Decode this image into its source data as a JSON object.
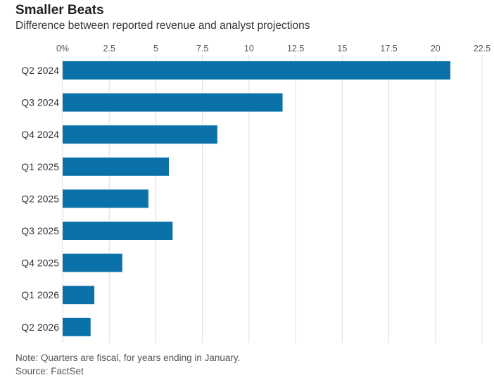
{
  "header": {
    "title": "Smaller Beats",
    "subtitle": "Difference between reported revenue and analyst projections"
  },
  "footer": {
    "note": "Note: Quarters are fiscal, for years ending in January.",
    "source": "Source: FactSet"
  },
  "chart_data": {
    "type": "bar",
    "orientation": "horizontal",
    "title": "Smaller Beats",
    "subtitle": "Difference between reported revenue and analyst projections",
    "categories": [
      "Q2 2024",
      "Q3 2024",
      "Q4 2024",
      "Q1 2025",
      "Q2 2025",
      "Q3 2025",
      "Q4 2025",
      "Q1 2026",
      "Q2 2026"
    ],
    "values": [
      20.8,
      11.8,
      8.3,
      5.7,
      4.6,
      5.9,
      3.2,
      1.7,
      1.5
    ],
    "xlim": [
      0,
      22.5
    ],
    "xticks": [
      0,
      2.5,
      5,
      7.5,
      10,
      12.5,
      15,
      17.5,
      20,
      22.5
    ],
    "xtick_labels": [
      "0%",
      "2.5",
      "5",
      "7.5",
      "10",
      "12.5",
      "15",
      "17.5",
      "20",
      "22.5"
    ],
    "axis_position": "top",
    "grid": true,
    "bar_color": "#0a72a8",
    "grid_color": "#dddddd"
  }
}
